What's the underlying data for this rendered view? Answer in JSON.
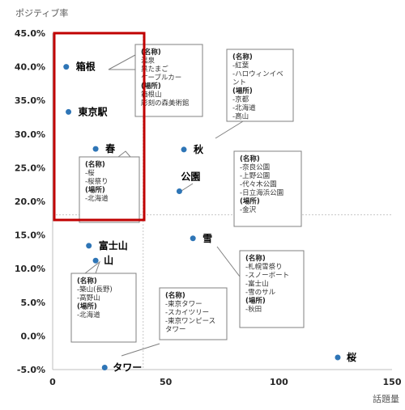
{
  "chart_data": {
    "type": "scatter",
    "title": "",
    "xlabel": "話題量",
    "ylabel": "ポジティブ率",
    "xlim": [
      0,
      150
    ],
    "ylim": [
      -0.05,
      0.45
    ],
    "x_ticks": [
      "0",
      "50",
      "100",
      "150"
    ],
    "y_ticks": [
      "-5.0%",
      "0.0%",
      "5.0%",
      "10.0%",
      "15.0%",
      "20.0%",
      "25.0%",
      "30.0%",
      "35.0%",
      "40.0%",
      "45.0%"
    ],
    "grid": false,
    "reference_lines": {
      "x": 40,
      "y": 0.18
    },
    "highlight_color": "#c00000",
    "marker_color": "#2e75b6",
    "points": [
      {
        "label": "箱根",
        "x": 6,
        "y": 0.4
      },
      {
        "label": "東京駅",
        "x": 7,
        "y": 0.333
      },
      {
        "label": "春",
        "x": 19,
        "y": 0.278
      },
      {
        "label": "秋",
        "x": 58,
        "y": 0.277
      },
      {
        "label": "公園",
        "x": 56,
        "y": 0.215
      },
      {
        "label": "富士山",
        "x": 16,
        "y": 0.134
      },
      {
        "label": "山",
        "x": 19,
        "y": 0.112
      },
      {
        "label": "雪",
        "x": 62,
        "y": 0.145
      },
      {
        "label": "桜",
        "x": 126,
        "y": -0.032
      },
      {
        "label": "タワー",
        "x": 23,
        "y": -0.047
      }
    ]
  },
  "callouts": [
    {
      "id": "hakone",
      "lines": [
        "(名称)",
        "温泉",
        "黒たまご",
        "ケーブルカー",
        "(場所)",
        "箱根山",
        "彫刻の森美術館"
      ]
    },
    {
      "id": "aki",
      "lines": [
        "(名称)",
        "-紅葉",
        "-ハロウィンイベ",
        "ント",
        "(場所)",
        "-京都",
        "-北海道",
        "-高山"
      ]
    },
    {
      "id": "haru",
      "lines": [
        "(名称)",
        "-桜",
        "-桜祭り",
        "(場所)",
        "-北海道"
      ]
    },
    {
      "id": "koen",
      "lines": [
        "(名称)",
        "-奈良公園",
        "-上野公園",
        "-代々木公園",
        "-日立海浜公園",
        "(場所)",
        "-金沢"
      ]
    },
    {
      "id": "yama",
      "lines": [
        "(名称)",
        "-築山(長野)",
        "-高野山",
        "(場所)",
        "-北海道"
      ]
    },
    {
      "id": "yuki",
      "lines": [
        "(名称)",
        "-札幌雪祭り",
        "-スノーボート",
        "-富士山",
        "-雪のサル",
        "(場所)",
        "-秋田"
      ]
    },
    {
      "id": "tower",
      "lines": [
        "(名称)",
        "-東京タワー",
        "-スカイツリー",
        "-東京ワンピース",
        "タワー"
      ]
    }
  ]
}
